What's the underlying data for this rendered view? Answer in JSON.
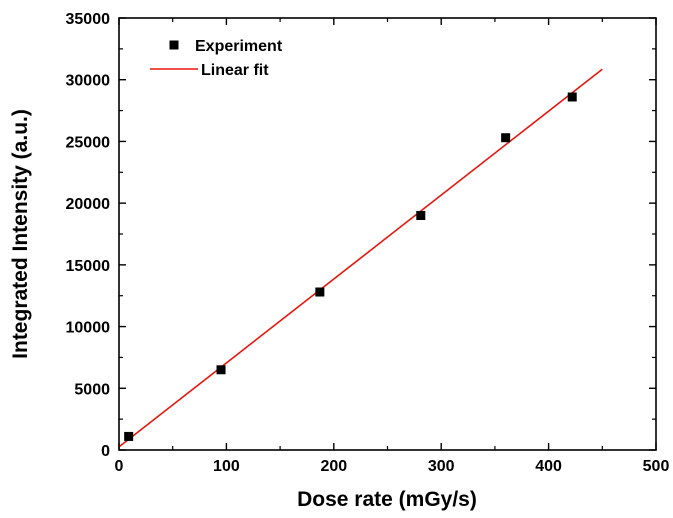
{
  "chart_data": {
    "type": "scatter",
    "xlabel": "Dose rate (mGy/s)",
    "ylabel": "Integrated Intensity (a.u.)",
    "xlim": [
      0,
      500
    ],
    "ylim": [
      0,
      35000
    ],
    "x_ticks": [
      0,
      100,
      200,
      300,
      400,
      500
    ],
    "y_ticks": [
      0,
      5000,
      10000,
      15000,
      20000,
      25000,
      30000,
      35000
    ],
    "grid": false,
    "legend_position": "top-left",
    "series": [
      {
        "name": "Experiment",
        "kind": "scatter",
        "marker": "square",
        "color": "#000000",
        "x": [
          9,
          95,
          187,
          281,
          360,
          422
        ],
        "y": [
          1100,
          6500,
          12800,
          19000,
          25300,
          28600
        ]
      },
      {
        "name": "Linear fit",
        "kind": "line",
        "color": "#e8150d",
        "x": [
          0,
          450
        ],
        "y": [
          250,
          30850
        ]
      }
    ]
  }
}
